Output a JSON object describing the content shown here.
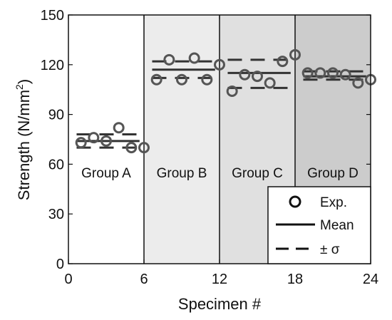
{
  "chart_data": {
    "type": "scatter",
    "xlabel": "Specimen #",
    "ylabel_main": "Strength (N/mm",
    "ylabel_sup": "2",
    "ylabel_close": ")",
    "xlim": [
      0,
      24
    ],
    "ylim": [
      0,
      150
    ],
    "xticks": [
      0,
      6,
      12,
      18,
      24
    ],
    "yticks": [
      0,
      30,
      60,
      90,
      120,
      150
    ],
    "groups": [
      {
        "label": "Group A",
        "range": [
          0,
          6
        ],
        "fill": "#ffffff",
        "x": [
          1,
          2,
          3,
          4,
          5,
          6
        ],
        "values": [
          73,
          76,
          74,
          82,
          70,
          70
        ],
        "mean": 74,
        "minus_sigma": 70,
        "plus_sigma": 78
      },
      {
        "label": "Group B",
        "range": [
          6,
          12
        ],
        "fill": "#ececec",
        "x": [
          7,
          8,
          9,
          10,
          11,
          12
        ],
        "values": [
          111,
          123,
          111,
          124,
          111,
          120
        ],
        "mean": 117,
        "minus_sigma": 112,
        "plus_sigma": 122
      },
      {
        "label": "Group C",
        "range": [
          12,
          18
        ],
        "fill": "#e0e0e0",
        "x": [
          13,
          14,
          15,
          16,
          17,
          18
        ],
        "values": [
          104,
          114,
          113,
          109,
          122,
          126
        ],
        "mean": 115,
        "minus_sigma": 106,
        "plus_sigma": 123
      },
      {
        "label": "Group D",
        "range": [
          18,
          24
        ],
        "fill": "#cccccc",
        "x": [
          19,
          20,
          21,
          22,
          23,
          24
        ],
        "values": [
          115,
          115,
          115,
          114,
          109,
          111
        ],
        "mean": 113,
        "minus_sigma": 111,
        "plus_sigma": 116
      }
    ],
    "legend": {
      "position": "bottom-right",
      "items": [
        {
          "symbol": "circle",
          "label": "Exp."
        },
        {
          "symbol": "solid-line",
          "label": "Mean"
        },
        {
          "symbol": "dashed-line",
          "label": "± σ"
        }
      ]
    },
    "colors": {
      "marker": "#555555",
      "line": "#333333",
      "axis": "#111111"
    }
  }
}
